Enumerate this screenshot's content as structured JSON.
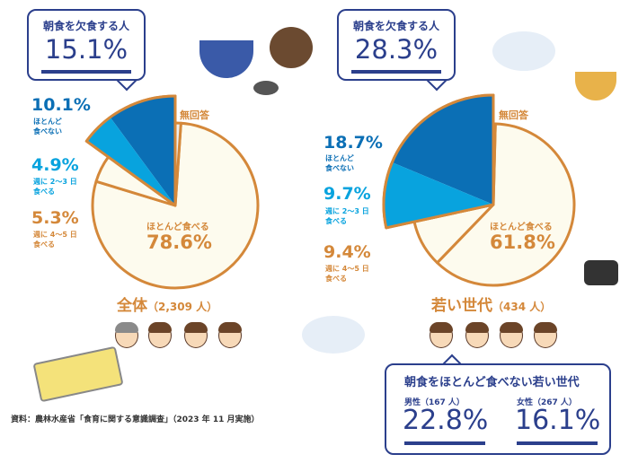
{
  "colors": {
    "dark": "#0b6fb5",
    "light": "#08a3de",
    "cream": "#fdfbee",
    "orange": "#d4883a",
    "navy": "#2b3f8c"
  },
  "chart_data": [
    {
      "type": "pie",
      "title": "全体（2,309 人）",
      "callout_title": "朝食を欠食する人",
      "callout_value": "15.1%",
      "slices": [
        {
          "label": "ほとんど食べない",
          "value": 10.1
        },
        {
          "label": "週に 2〜3 日食べる",
          "value": 4.9
        },
        {
          "label": "週に 4〜5 日食べる",
          "value": 5.3
        },
        {
          "label": "ほとんど食べる",
          "value": 78.6
        },
        {
          "label": "無回答",
          "value": 1.1
        }
      ]
    },
    {
      "type": "pie",
      "title": "若い世代（434 人）",
      "callout_title": "朝食を欠食する人",
      "callout_value": "28.3%",
      "slices": [
        {
          "label": "ほとんど食べない",
          "value": 18.7
        },
        {
          "label": "週に 2〜3 日食べる",
          "value": 9.7
        },
        {
          "label": "週に 4〜5 日食べる",
          "value": 9.4
        },
        {
          "label": "ほとんど食べる",
          "value": 61.8
        },
        {
          "label": "無回答",
          "value": 0.4
        }
      ]
    }
  ],
  "labels": {
    "left": {
      "p1": "10.1%",
      "l1a": "ほとんど",
      "l1b": "食べない",
      "p2": "4.9%",
      "l2a": "週に 2〜3 日",
      "l2b": "食べる",
      "p3": "5.3%",
      "l3a": "週に 4〜5 日",
      "l3b": "食べる",
      "na": "無回答",
      "main_label": "ほとんど食べる",
      "main_pct": "78.6%",
      "title_a": "全体",
      "title_b": "（2,309 人）"
    },
    "right": {
      "p1": "18.7%",
      "l1a": "ほとんど",
      "l1b": "食べない",
      "p2": "9.7%",
      "l2a": "週に 2〜3 日",
      "l2b": "食べる",
      "p3": "9.4%",
      "l3a": "週に 4〜5 日",
      "l3b": "食べる",
      "na": "無回答",
      "main_label": "ほとんど食べる",
      "main_pct": "61.8%",
      "title_a": "若い世代",
      "title_b": "（434 人）"
    }
  },
  "young_box": {
    "title": "朝食をほとんど食べない若い世代",
    "male_label": "男性（167 人）",
    "male_value": "22.8%",
    "female_label": "女性（267 人）",
    "female_value": "16.1%"
  },
  "source": "資料：農林水産省「食育に関する意識調査」（2023 年 11 月実施）"
}
